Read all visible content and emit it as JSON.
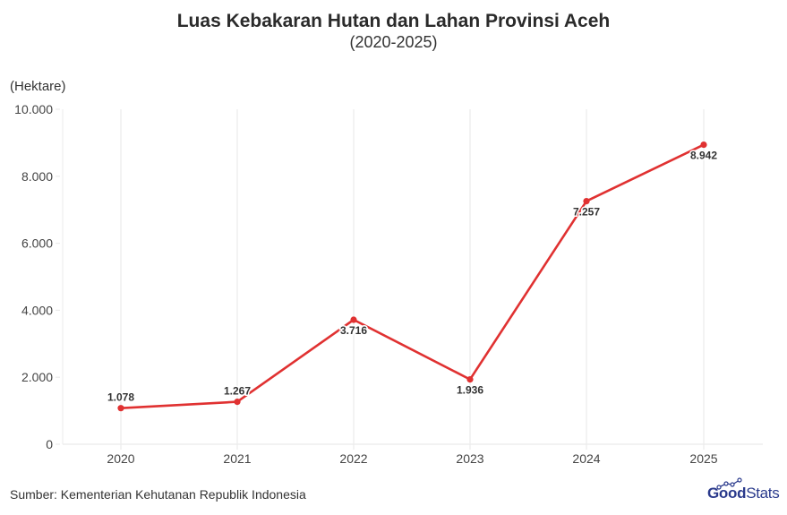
{
  "header": {
    "title": "Luas Kebakaran Hutan dan Lahan Provinsi Aceh",
    "subtitle": "(2020-2025)"
  },
  "axis": {
    "y_unit_label": "(Hektare)",
    "y_ticks": [
      "0",
      "2.000",
      "4.000",
      "6.000",
      "8.000",
      "10.000"
    ],
    "x_ticks": [
      "2020",
      "2021",
      "2022",
      "2023",
      "2024",
      "2025"
    ]
  },
  "data_labels": [
    "1.078",
    "1.267",
    "3.716",
    "1.936",
    "7.257",
    "8.942"
  ],
  "footer": {
    "source": "Sumber: Kementerian Kehutanan Republik Indonesia",
    "logo_good": "Good",
    "logo_stats": "Stats"
  },
  "colors": {
    "line": "#e03131",
    "grid": "#ebebeb",
    "logo": "#2a3a8c"
  },
  "chart_data": {
    "type": "line",
    "title": "Luas Kebakaran Hutan dan Lahan Provinsi Aceh",
    "subtitle": "(2020-2025)",
    "xlabel": "",
    "ylabel": "(Hektare)",
    "categories": [
      "2020",
      "2021",
      "2022",
      "2023",
      "2024",
      "2025"
    ],
    "series": [
      {
        "name": "Luas Kebakaran (Hektare)",
        "values": [
          1078,
          1267,
          3716,
          1936,
          7257,
          8942
        ],
        "color": "#e03131"
      }
    ],
    "ylim": [
      0,
      10000
    ],
    "y_ticks": [
      0,
      2000,
      4000,
      6000,
      8000,
      10000
    ],
    "grid": {
      "vertical": true,
      "horizontal": false
    },
    "legend": "none",
    "source": "Sumber: Kementerian Kehutanan Republik Indonesia"
  }
}
